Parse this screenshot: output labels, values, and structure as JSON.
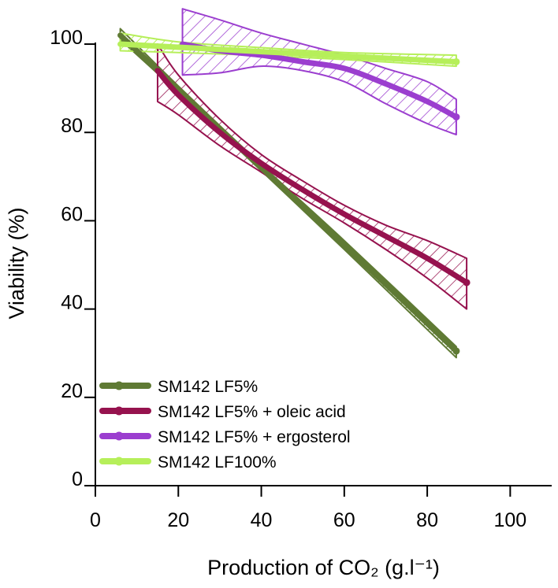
{
  "chart_data": {
    "type": "line",
    "title": "",
    "xlabel": "Production of CO₂ (g.l⁻¹)",
    "ylabel": "Viability (%)",
    "xlim": [
      0,
      110
    ],
    "ylim": [
      0,
      105
    ],
    "xticks": [
      0,
      20,
      40,
      60,
      80,
      100
    ],
    "yticks": [
      0,
      20,
      40,
      60,
      80,
      100
    ],
    "grid": false,
    "legend_position": "bottom-left",
    "series": [
      {
        "name": "SM142 LF5%",
        "color": "#5f7a34",
        "x": [
          6,
          20,
          40,
          60,
          87
        ],
        "y": [
          102,
          89.7,
          72,
          54.5,
          30.5
        ],
        "ci_lower": [
          101,
          89,
          71.3,
          53.5,
          29
        ],
        "ci_upper": [
          103.5,
          90.5,
          72.7,
          55.5,
          31.5
        ]
      },
      {
        "name": "SM142 LF5% + oleic acid",
        "color": "#96124e",
        "x": [
          15,
          20,
          30,
          40,
          50,
          60,
          70,
          80,
          89.5
        ],
        "y": [
          94,
          88.5,
          80,
          73,
          67,
          61.5,
          56.5,
          51.5,
          46
        ],
        "ci_lower": [
          87,
          84,
          77,
          71,
          65,
          59.5,
          53.5,
          47,
          40
        ],
        "ci_upper": [
          100,
          93,
          83,
          75,
          69,
          63.5,
          59,
          55.5,
          51.5
        ]
      },
      {
        "name": "SM142 LF5% + ergosterol",
        "color": "#9b3ecf",
        "x": [
          21,
          30,
          40,
          50,
          60,
          70,
          80,
          87
        ],
        "y": [
          100,
          98.5,
          97.5,
          96,
          94.5,
          91,
          87,
          83.5
        ],
        "ci_lower": [
          93,
          93.5,
          95,
          94,
          91.5,
          86.5,
          82,
          79.5
        ],
        "ci_upper": [
          108,
          105.5,
          102.5,
          100,
          97.5,
          94.5,
          91.5,
          87.5
        ]
      },
      {
        "name": "SM142 LF100%",
        "color": "#b6ef5a",
        "x": [
          6,
          20,
          40,
          60,
          87
        ],
        "y": [
          100,
          99.3,
          98.3,
          97.3,
          96
        ],
        "ci_lower": [
          98.5,
          98.1,
          97.4,
          96.5,
          95
        ],
        "ci_upper": [
          102.5,
          100.5,
          99.2,
          98.1,
          97.5
        ]
      }
    ]
  }
}
